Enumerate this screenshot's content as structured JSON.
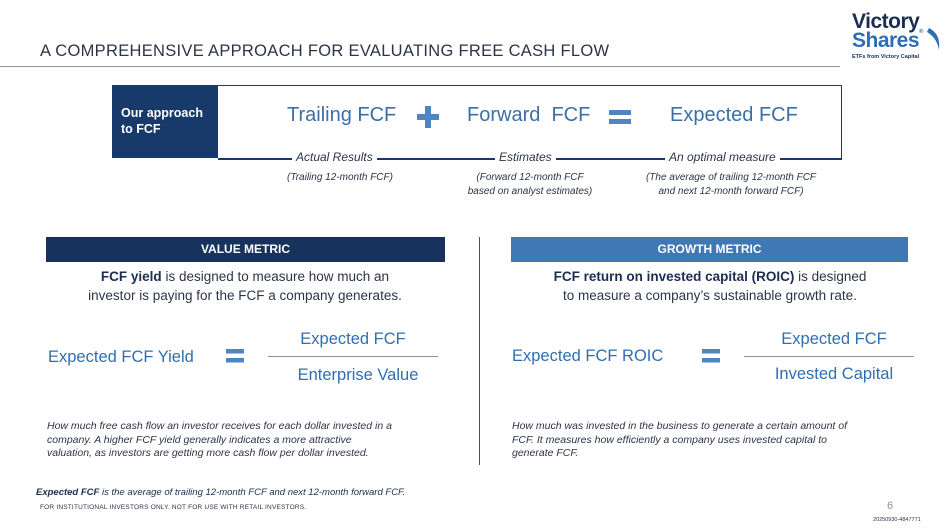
{
  "header": {
    "title": "A COMPREHENSIVE APPROACH FOR EVALUATING FREE CASH FLOW",
    "logo_line1": "Victory",
    "logo_line2": "Shares",
    "logo_tagline": "ETFs from Victory Capital"
  },
  "approach": {
    "label": "Our approach to FCF",
    "term1": "Trailing FCF",
    "term2": "Forward  FCF",
    "term3": "Expected FCF",
    "sub1_label": "Actual Results",
    "sub1_note": "(Trailing 12-month FCF)",
    "sub2_label": "Estimates",
    "sub2_note_line1": "(Forward 12-month FCF",
    "sub2_note_line2": "based on analyst estimates)",
    "sub3_label": "An optimal measure",
    "sub3_note_line1": "(The average of trailing 12-month FCF",
    "sub3_note_line2": "and next 12-month forward FCF)"
  },
  "value_metric": {
    "heading": "VALUE METRIC",
    "desc_bold": "FCF yield",
    "desc_rest1": " is designed to measure how much an",
    "desc_line2": "investor is paying for the FCF a company generates.",
    "eq_left": "Expected FCF Yield",
    "numerator": "Expected FCF",
    "denominator": "Enterprise Value",
    "note_line1": "How much free cash flow an investor receives for each dollar invested in a",
    "note_line2": "company. A higher FCF yield generally indicates a more attractive",
    "note_line3": "valuation, as investors are getting more cash flow per dollar invested."
  },
  "growth_metric": {
    "heading": "GROWTH METRIC",
    "desc_bold": "FCF return on invested capital (ROIC)",
    "desc_rest1": " is designed",
    "desc_line2": "to measure a company’s sustainable growth rate.",
    "eq_left": "Expected FCF ROIC",
    "numerator": "Expected FCF",
    "denominator": "Invested Capital",
    "note_line1": "How much was invested in the business to generate a certain amount of",
    "note_line2": "FCF. It measures how efficiently a company uses invested capital to",
    "note_line3": "generate FCF."
  },
  "footer": {
    "footnote_bold": "Expected FCF",
    "footnote_rest": " is the average of trailing 12-month FCF and next 12-month forward FCF.",
    "disclaimer": "FOR INSTITUTIONAL INVESTORS ONLY.  NOT FOR USE WITH RETAIL INVESTORS.",
    "page_number": "6",
    "doc_code": "20250930-4847771"
  },
  "colors": {
    "navy": "#183a6b",
    "accent_blue": "#2e6fb3",
    "growth_header": "#3f78b5",
    "value_header": "#17325c"
  }
}
